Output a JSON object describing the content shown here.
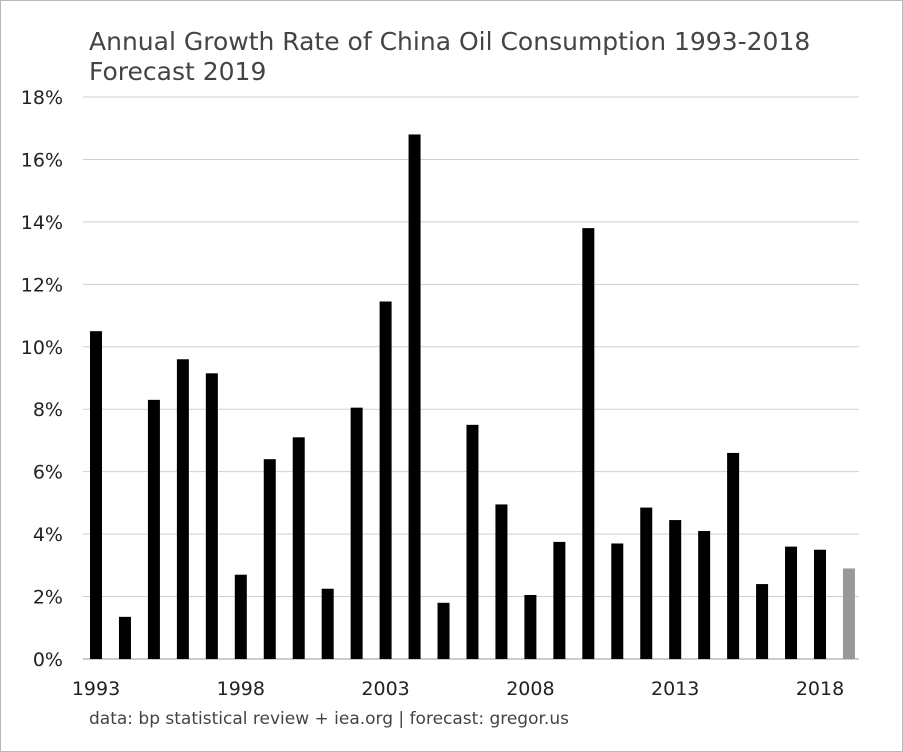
{
  "chart_data": {
    "type": "bar",
    "title": [
      "Annual Growth Rate of China Oil Consumption 1993-2018",
      "Forecast 2019"
    ],
    "source": "data: bp statistical review + iea.org | forecast: gregor.us",
    "ylim": [
      0,
      18
    ],
    "y_ticks": [
      {
        "value": 0,
        "label": "0%"
      },
      {
        "value": 2,
        "label": "2%"
      },
      {
        "value": 4,
        "label": "4%"
      },
      {
        "value": 6,
        "label": "6%"
      },
      {
        "value": 8,
        "label": "8%"
      },
      {
        "value": 10,
        "label": "10%"
      },
      {
        "value": 12,
        "label": "12%"
      },
      {
        "value": 14,
        "label": "14%"
      },
      {
        "value": 16,
        "label": "16%"
      },
      {
        "value": 18,
        "label": "18%"
      }
    ],
    "x_tick_labels": [
      "1993",
      "1998",
      "2003",
      "2008",
      "2013",
      "2018"
    ],
    "grid": true,
    "categories": [
      1993,
      1994,
      1995,
      1996,
      1997,
      1998,
      1999,
      2000,
      2001,
      2002,
      2003,
      2004,
      2005,
      2006,
      2007,
      2008,
      2009,
      2010,
      2011,
      2012,
      2013,
      2014,
      2015,
      2016,
      2017,
      2018,
      2019
    ],
    "series": [
      {
        "values": [
          10.5,
          1.35,
          8.3,
          9.6,
          9.15,
          2.7,
          6.4,
          7.1,
          2.25,
          8.05,
          11.45,
          16.8,
          1.8,
          7.5,
          4.95,
          2.05,
          3.75,
          13.8,
          3.7,
          4.85,
          4.45,
          4.1,
          6.6,
          2.4,
          3.6,
          3.5,
          2.9
        ],
        "forecast_from": 2019,
        "color": "#000000",
        "forecast_color": "#999999"
      }
    ]
  }
}
